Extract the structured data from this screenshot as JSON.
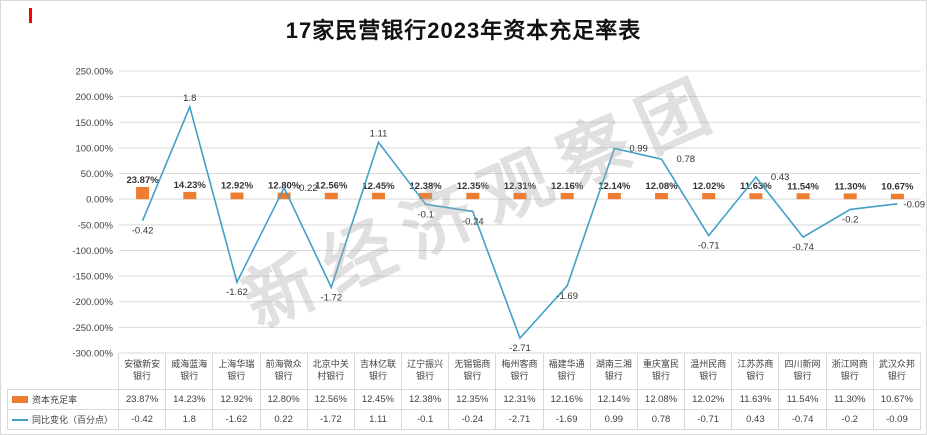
{
  "title": "17家民营银行2023年资本充足率表",
  "watermark": "新经济观察团",
  "colors": {
    "bar": "#ED7D31",
    "line": "#42A0C6",
    "grid": "#D9D9D9",
    "axis_text": "#404040",
    "label_text": "#333333",
    "red_mark": "#FF0000"
  },
  "chart_data": {
    "type": "bar",
    "subtype": "combo-bar-line",
    "title": "17家民营银行2023年资本充足率表",
    "categories": [
      "安徽新安银行",
      "威海蓝海银行",
      "上海华瑞银行",
      "前海微众银行",
      "北京中关村银行",
      "吉林亿联银行",
      "辽宁振兴银行",
      "无锡锡商银行",
      "梅州客商银行",
      "福建华通银行",
      "湖南三湘银行",
      "重庆富民银行",
      "温州民商银行",
      "江苏苏商银行",
      "四川新网银行",
      "浙江网商银行",
      "武汉众邦银行"
    ],
    "series": [
      {
        "name": "资本充足率",
        "type": "bar",
        "color": "#ED7D31",
        "unit": "%",
        "values": [
          23.87,
          14.23,
          12.92,
          12.8,
          12.56,
          12.45,
          12.38,
          12.35,
          12.31,
          12.16,
          12.14,
          12.08,
          12.02,
          11.63,
          11.54,
          11.3,
          10.67
        ],
        "labels": [
          "23.87%",
          "14.23%",
          "12.92%",
          "12.80%",
          "12.56%",
          "12.45%",
          "12.38%",
          "12.35%",
          "12.31%",
          "12.16%",
          "12.14%",
          "12.08%",
          "12.02%",
          "11.63%",
          "11.54%",
          "11.30%",
          "10.67%"
        ]
      },
      {
        "name": "同比变化（百分点）",
        "type": "line",
        "color": "#42A0C6",
        "unit": "百分点",
        "plot_scale": 100,
        "values": [
          -0.42,
          1.8,
          -1.62,
          0.22,
          -1.72,
          1.11,
          -0.1,
          -0.24,
          -2.71,
          -1.69,
          0.99,
          0.78,
          -0.71,
          0.43,
          -0.74,
          -0.2,
          -0.09
        ],
        "labels": [
          "-0.42",
          "1.8",
          "-1.62",
          "0.22",
          "-1.72",
          "1.11",
          "-0.1",
          "-0.24",
          "-2.71",
          "-1.69",
          "0.99",
          "0.78",
          "-0.71",
          "0.43",
          "-0.74",
          "-0.2",
          "-0.09"
        ]
      }
    ],
    "y_axis": {
      "max": 250,
      "min": -300,
      "step": 50,
      "tick_labels": [
        "250.00%",
        "200.00%",
        "150.00%",
        "100.00%",
        "50.00%",
        "0.00%",
        "-50.00%",
        "-100.00%",
        "-150.00%",
        "-200.00%",
        "-250.00%",
        "-300.00%"
      ]
    },
    "grid": true,
    "legend_position": "bottom-left",
    "data_table_shown": true
  }
}
